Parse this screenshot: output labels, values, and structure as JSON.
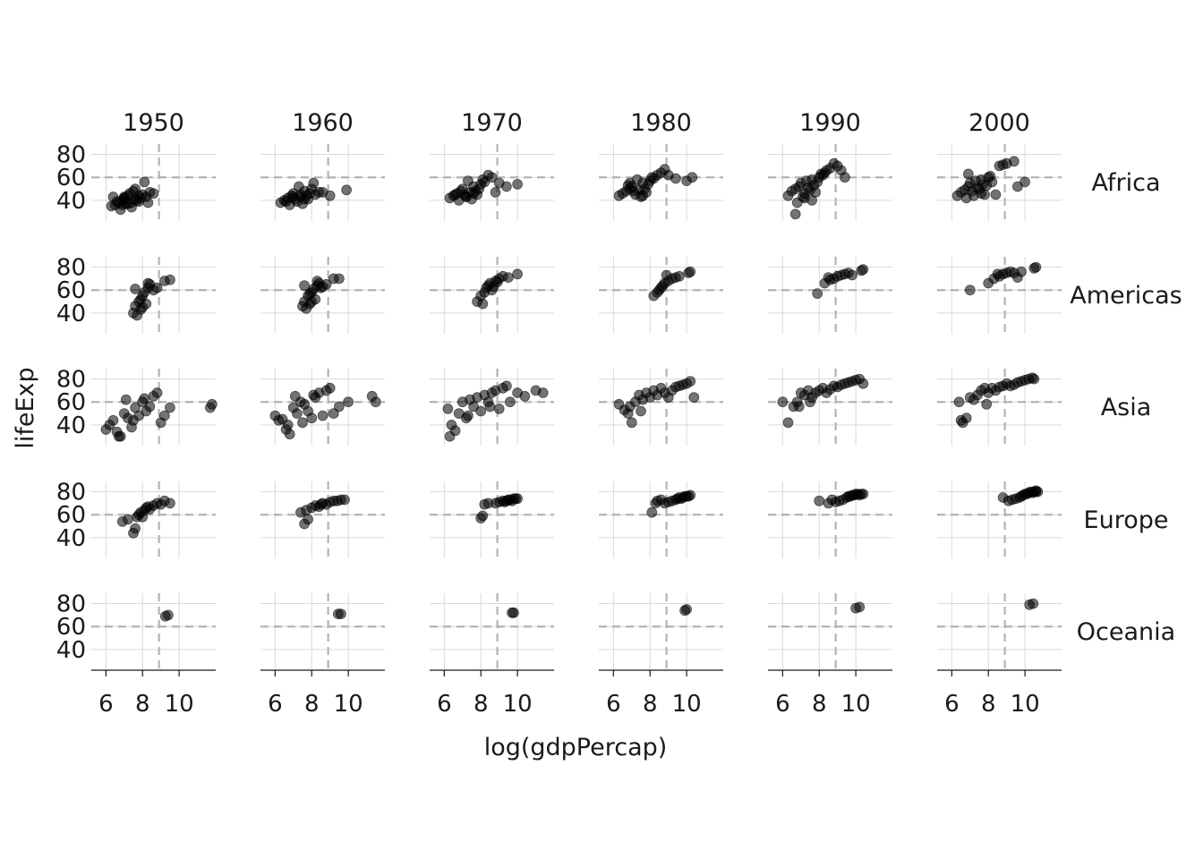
{
  "chart_data": {
    "type": "scatter",
    "xlabel": "log(gdpPercap)",
    "ylabel": "lifeExp",
    "col_facets": [
      "1950",
      "1960",
      "1970",
      "1980",
      "1990",
      "2000"
    ],
    "row_facets": [
      "Africa",
      "Americas",
      "Asia",
      "Europe",
      "Oceania"
    ],
    "xlim": [
      5.2,
      12.0
    ],
    "ylim": [
      22,
      89
    ],
    "x_ticks": [
      6,
      8,
      10
    ],
    "y_ticks": [
      40,
      60,
      80
    ],
    "reference_lines": {
      "x": 8.9,
      "y": 60
    },
    "grid": true,
    "point_color": "#000000",
    "point_alpha": 0.55,
    "reference_line_color": "#b3b3b3",
    "panels": [
      {
        "row": "Africa",
        "col": "1950",
        "x": [
          6.5,
          6.7,
          6.9,
          7.0,
          7.2,
          7.4,
          7.6,
          7.8,
          8.0,
          8.2,
          8.4,
          6.3,
          6.8,
          7.1,
          7.3,
          7.5,
          7.7,
          7.9,
          8.1,
          6.6,
          7.0,
          7.4,
          7.8,
          8.6,
          6.4,
          7.2,
          7.6,
          8.3,
          7.0,
          6.9
        ],
        "y": [
          36,
          38,
          40,
          42,
          44,
          38,
          41,
          39,
          45,
          43,
          47,
          35,
          32,
          37,
          46,
          48,
          40,
          42,
          56,
          39,
          41,
          34,
          44,
          46,
          43,
          37,
          50,
          38,
          43,
          36
        ]
      },
      {
        "row": "Africa",
        "col": "1960",
        "x": [
          6.5,
          6.7,
          6.9,
          7.0,
          7.2,
          7.4,
          7.6,
          7.8,
          8.0,
          8.2,
          8.4,
          6.3,
          6.8,
          7.1,
          7.3,
          7.5,
          7.7,
          7.9,
          8.1,
          8.6,
          9.0,
          9.9,
          7.0,
          6.6,
          7.4,
          7.6
        ],
        "y": [
          40,
          42,
          44,
          46,
          39,
          43,
          48,
          41,
          50,
          45,
          47,
          38,
          36,
          41,
          52,
          37,
          44,
          46,
          55,
          47,
          44,
          49,
          43,
          39,
          45,
          41
        ]
      },
      {
        "row": "Africa",
        "col": "1970",
        "x": [
          6.5,
          6.7,
          6.9,
          7.0,
          7.2,
          7.4,
          7.6,
          7.8,
          8.0,
          8.2,
          8.4,
          6.3,
          6.8,
          7.1,
          7.3,
          7.5,
          7.7,
          7.9,
          8.1,
          8.6,
          9.0,
          9.4,
          10.0,
          8.8,
          7.6,
          7.2,
          6.6
        ],
        "y": [
          44,
          46,
          48,
          50,
          43,
          47,
          52,
          45,
          54,
          56,
          62,
          42,
          40,
          45,
          57,
          41,
          48,
          50,
          58,
          60,
          55,
          52,
          54,
          47,
          46,
          43,
          45
        ]
      },
      {
        "row": "Africa",
        "col": "1980",
        "x": [
          6.5,
          6.7,
          6.9,
          7.0,
          7.2,
          7.4,
          7.6,
          7.8,
          8.0,
          8.2,
          8.4,
          6.3,
          6.8,
          7.1,
          7.3,
          7.5,
          7.7,
          7.9,
          8.1,
          8.6,
          9.0,
          9.4,
          10.0,
          10.3,
          8.8,
          7.6,
          6.9
        ],
        "y": [
          46,
          48,
          50,
          52,
          45,
          49,
          55,
          47,
          57,
          59,
          62,
          44,
          53,
          48,
          58,
          43,
          50,
          54,
          60,
          64,
          62,
          59,
          57,
          60,
          67,
          44,
          55
        ]
      },
      {
        "row": "Africa",
        "col": "1990",
        "x": [
          6.5,
          6.7,
          6.9,
          7.0,
          7.2,
          7.4,
          7.6,
          7.8,
          8.0,
          8.2,
          8.4,
          6.3,
          6.8,
          7.1,
          7.3,
          7.5,
          7.7,
          7.9,
          8.1,
          8.6,
          9.0,
          9.4,
          6.7,
          7.2,
          8.8,
          9.2,
          7.6,
          8.3
        ],
        "y": [
          48,
          50,
          52,
          55,
          46,
          51,
          58,
          47,
          60,
          62,
          66,
          44,
          38,
          43,
          57,
          49,
          53,
          56,
          63,
          68,
          70,
          60,
          28,
          42,
          72,
          66,
          40,
          64
        ]
      },
      {
        "row": "Africa",
        "col": "2000",
        "x": [
          6.5,
          6.7,
          6.9,
          7.0,
          7.2,
          7.4,
          7.6,
          7.8,
          8.0,
          8.2,
          8.4,
          6.3,
          6.8,
          7.1,
          7.3,
          7.5,
          7.7,
          7.9,
          8.1,
          8.6,
          9.0,
          9.4,
          9.6,
          10.0,
          8.8,
          7.6,
          6.9
        ],
        "y": [
          47,
          49,
          52,
          55,
          44,
          51,
          58,
          45,
          60,
          56,
          45,
          44,
          42,
          48,
          57,
          50,
          54,
          53,
          61,
          70,
          72,
          74,
          52,
          56,
          71,
          46,
          63
        ]
      },
      {
        "row": "Americas",
        "col": "1950",
        "x": [
          7.5,
          7.6,
          7.8,
          7.9,
          8.0,
          8.1,
          8.2,
          8.3,
          8.4,
          8.6,
          8.8,
          9.2,
          9.5,
          7.7,
          8.0,
          7.9,
          7.6,
          8.3
        ],
        "y": [
          40,
          46,
          50,
          43,
          55,
          58,
          48,
          62,
          65,
          60,
          62,
          68,
          69,
          38,
          45,
          52,
          61,
          66
        ]
      },
      {
        "row": "Americas",
        "col": "1960",
        "x": [
          7.5,
          7.6,
          7.8,
          7.9,
          8.0,
          8.1,
          8.2,
          8.3,
          8.4,
          8.6,
          8.8,
          9.2,
          9.5,
          7.7,
          8.0,
          7.9,
          7.6,
          8.3,
          8.5
        ],
        "y": [
          46,
          50,
          55,
          48,
          58,
          61,
          52,
          64,
          66,
          63,
          65,
          70,
          70,
          44,
          50,
          57,
          64,
          68,
          62
        ]
      },
      {
        "row": "Americas",
        "col": "1970",
        "x": [
          7.8,
          8.0,
          8.2,
          8.3,
          8.4,
          8.5,
          8.6,
          8.8,
          9.0,
          9.2,
          9.5,
          10.0,
          8.1,
          8.7,
          8.9
        ],
        "y": [
          50,
          55,
          58,
          62,
          64,
          66,
          60,
          68,
          70,
          72,
          71,
          74,
          48,
          63,
          67
        ]
      },
      {
        "row": "Americas",
        "col": "1980",
        "x": [
          8.2,
          8.4,
          8.6,
          8.7,
          8.8,
          9.0,
          9.2,
          9.4,
          9.6,
          10.1,
          10.2,
          8.5,
          8.9
        ],
        "y": [
          55,
          58,
          62,
          64,
          66,
          68,
          70,
          71,
          72,
          75,
          76,
          60,
          73
        ]
      },
      {
        "row": "Americas",
        "col": "1990",
        "x": [
          7.9,
          8.3,
          8.6,
          8.8,
          9.0,
          9.2,
          9.4,
          9.6,
          9.8,
          10.3,
          10.4,
          8.5
        ],
        "y": [
          57,
          66,
          69,
          70,
          72,
          73,
          74,
          75,
          73,
          77,
          78,
          71
        ]
      },
      {
        "row": "Americas",
        "col": "2000",
        "x": [
          7.0,
          8.0,
          8.3,
          8.6,
          8.8,
          9.0,
          9.2,
          9.4,
          9.6,
          9.8,
          10.5,
          10.6,
          8.5
        ],
        "y": [
          60,
          66,
          70,
          72,
          74,
          75,
          76,
          75,
          71,
          76,
          79,
          80,
          74
        ]
      },
      {
        "row": "Asia",
        "col": "1950",
        "x": [
          6.0,
          6.2,
          6.4,
          6.6,
          6.8,
          7.0,
          7.2,
          7.4,
          7.6,
          7.8,
          8.0,
          8.2,
          8.4,
          8.6,
          8.8,
          9.0,
          9.2,
          9.5,
          11.8,
          11.7,
          6.7,
          7.1,
          7.5,
          8.1
        ],
        "y": [
          36,
          40,
          44,
          34,
          30,
          50,
          46,
          38,
          55,
          48,
          60,
          52,
          56,
          65,
          68,
          42,
          48,
          55,
          58,
          55,
          30,
          62,
          44,
          63
        ]
      },
      {
        "row": "Asia",
        "col": "1960",
        "x": [
          6.0,
          6.2,
          6.4,
          6.6,
          6.8,
          7.0,
          7.2,
          7.4,
          7.6,
          7.8,
          8.0,
          8.2,
          8.4,
          8.6,
          8.8,
          9.0,
          9.2,
          9.5,
          10.0,
          11.3,
          11.5,
          6.7,
          7.1,
          7.5,
          8.1
        ],
        "y": [
          48,
          44,
          45,
          36,
          32,
          55,
          50,
          60,
          58,
          52,
          46,
          64,
          68,
          48,
          70,
          72,
          50,
          56,
          60,
          65,
          60,
          40,
          65,
          42,
          66
        ]
      },
      {
        "row": "Asia",
        "col": "1970",
        "x": [
          6.2,
          6.4,
          6.6,
          6.8,
          7.0,
          7.2,
          7.4,
          7.6,
          7.8,
          8.0,
          8.2,
          8.4,
          8.6,
          8.8,
          9.0,
          9.2,
          9.4,
          9.6,
          10.0,
          10.4,
          11.0,
          11.4,
          6.3,
          7.3,
          8.5
        ],
        "y": [
          54,
          40,
          35,
          50,
          60,
          46,
          62,
          56,
          64,
          52,
          66,
          60,
          68,
          70,
          54,
          72,
          74,
          60,
          68,
          65,
          70,
          68,
          30,
          48,
          56
        ]
      },
      {
        "row": "Asia",
        "col": "1980",
        "x": [
          6.3,
          6.6,
          6.8,
          7.0,
          7.2,
          7.4,
          7.6,
          7.8,
          8.0,
          8.2,
          8.4,
          8.6,
          8.8,
          9.0,
          9.2,
          9.4,
          9.6,
          9.8,
          10.0,
          10.2,
          10.4,
          6.9,
          7.5
        ],
        "y": [
          58,
          53,
          50,
          42,
          60,
          66,
          62,
          68,
          64,
          70,
          66,
          72,
          68,
          64,
          70,
          73,
          74,
          75,
          76,
          78,
          64,
          56,
          52
        ]
      },
      {
        "row": "Asia",
        "col": "1990",
        "x": [
          6.0,
          6.3,
          6.6,
          6.8,
          7.0,
          7.2,
          7.4,
          7.6,
          7.8,
          8.0,
          8.2,
          8.4,
          8.6,
          8.8,
          9.0,
          9.2,
          9.4,
          9.6,
          9.8,
          10.0,
          10.2,
          10.4,
          6.9,
          7.5
        ],
        "y": [
          60,
          42,
          56,
          60,
          68,
          66,
          70,
          64,
          68,
          70,
          72,
          68,
          71,
          74,
          73,
          75,
          76,
          77,
          78,
          79,
          80,
          76,
          56,
          60
        ]
      },
      {
        "row": "Asia",
        "col": "2000",
        "x": [
          6.4,
          6.6,
          6.8,
          7.0,
          7.2,
          7.4,
          7.6,
          7.8,
          8.0,
          8.2,
          8.4,
          8.6,
          8.8,
          9.0,
          9.2,
          9.4,
          9.6,
          9.8,
          10.0,
          10.2,
          10.4,
          10.5,
          6.5,
          7.9
        ],
        "y": [
          60,
          42,
          46,
          64,
          62,
          66,
          70,
          72,
          68,
          72,
          70,
          73,
          74,
          76,
          74,
          75,
          77,
          78,
          79,
          80,
          81,
          80,
          44,
          58
        ]
      },
      {
        "row": "Europe",
        "col": "1950",
        "x": [
          6.9,
          7.2,
          7.5,
          7.6,
          7.8,
          7.9,
          8.0,
          8.1,
          8.2,
          8.4,
          8.6,
          8.8,
          9.0,
          9.2,
          9.5,
          7.7,
          8.3
        ],
        "y": [
          54,
          56,
          44,
          48,
          60,
          62,
          58,
          64,
          66,
          65,
          68,
          70,
          69,
          72,
          70,
          58,
          67
        ]
      },
      {
        "row": "Europe",
        "col": "1960",
        "x": [
          7.4,
          7.6,
          7.8,
          8.0,
          8.2,
          8.4,
          8.6,
          8.8,
          9.0,
          9.2,
          9.4,
          9.6,
          9.8,
          7.7,
          8.5
        ],
        "y": [
          62,
          52,
          56,
          66,
          68,
          67,
          70,
          69,
          71,
          72,
          72,
          73,
          73,
          64,
          69
        ]
      },
      {
        "row": "Europe",
        "col": "1970",
        "x": [
          8.0,
          8.1,
          8.2,
          8.8,
          9.0,
          9.2,
          9.3,
          9.4,
          9.5,
          9.6,
          9.7,
          9.8,
          9.9,
          10.0,
          8.4
        ],
        "y": [
          57,
          59,
          69,
          70,
          71,
          72,
          71,
          72,
          73,
          73,
          72,
          74,
          74,
          74,
          70
        ]
      },
      {
        "row": "Europe",
        "col": "1980",
        "x": [
          8.1,
          8.3,
          8.4,
          8.6,
          8.8,
          9.0,
          9.2,
          9.4,
          9.5,
          9.6,
          9.7,
          9.8,
          9.9,
          10.0,
          10.1,
          10.2
        ],
        "y": [
          62,
          70,
          72,
          73,
          70,
          71,
          72,
          73,
          74,
          75,
          74,
          75,
          76,
          76,
          76,
          77
        ]
      },
      {
        "row": "Europe",
        "col": "1990",
        "x": [
          8.0,
          8.5,
          8.7,
          8.9,
          9.1,
          9.3,
          9.5,
          9.6,
          9.7,
          9.8,
          9.9,
          10.0,
          10.1,
          10.2,
          10.3,
          10.4
        ],
        "y": [
          72,
          70,
          73,
          71,
          72,
          73,
          75,
          76,
          76,
          77,
          77,
          78,
          78,
          77,
          78,
          78
        ]
      },
      {
        "row": "Europe",
        "col": "2000",
        "x": [
          8.8,
          9.1,
          9.3,
          9.5,
          9.7,
          9.8,
          9.9,
          10.0,
          10.1,
          10.2,
          10.3,
          10.4,
          10.5,
          10.6,
          10.6,
          10.7
        ],
        "y": [
          75,
          72,
          73,
          74,
          75,
          76,
          77,
          78,
          78,
          79,
          80,
          79,
          80,
          80,
          81,
          80
        ]
      },
      {
        "row": "Oceania",
        "col": "1950",
        "x": [
          9.25,
          9.4
        ],
        "y": [
          69,
          70
        ]
      },
      {
        "row": "Oceania",
        "col": "1960",
        "x": [
          9.45,
          9.6
        ],
        "y": [
          71,
          71
        ]
      },
      {
        "row": "Oceania",
        "col": "1970",
        "x": [
          9.7,
          9.8
        ],
        "y": [
          72,
          72
        ]
      },
      {
        "row": "Oceania",
        "col": "1980",
        "x": [
          9.9,
          10.0
        ],
        "y": [
          74,
          75
        ]
      },
      {
        "row": "Oceania",
        "col": "1990",
        "x": [
          10.0,
          10.2
        ],
        "y": [
          76,
          77
        ]
      },
      {
        "row": "Oceania",
        "col": "2000",
        "x": [
          10.25,
          10.45
        ],
        "y": [
          79,
          80
        ]
      }
    ]
  }
}
